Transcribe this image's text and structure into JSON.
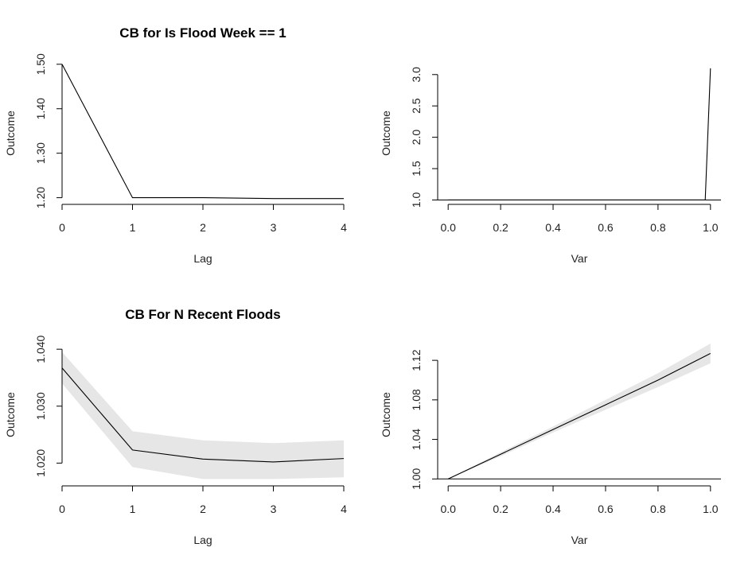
{
  "chart_data": [
    {
      "type": "line",
      "title": "CB for Is Flood Week == 1",
      "xlabel": "Lag",
      "ylabel": "Outcome",
      "xlim": [
        0,
        4
      ],
      "ylim": [
        1.185,
        1.505
      ],
      "xticks": [
        0,
        1,
        2,
        3,
        4
      ],
      "xtick_labels": [
        "0",
        "1",
        "2",
        "3",
        "4"
      ],
      "yticks": [
        1.2,
        1.3,
        1.4,
        1.5
      ],
      "ytick_labels": [
        "1.20",
        "1.30",
        "1.40",
        "1.50"
      ],
      "x": [
        0,
        1,
        2,
        3,
        4
      ],
      "series": [
        {
          "values": [
            1.5,
            1.2,
            1.2,
            1.198,
            1.198
          ]
        }
      ]
    },
    {
      "type": "line",
      "title": "",
      "xlabel": "Var",
      "ylabel": "Outcome",
      "xlim": [
        -0.04,
        1.04
      ],
      "ylim": [
        0.93,
        3.2
      ],
      "xticks": [
        0.0,
        0.2,
        0.4,
        0.6,
        0.8,
        1.0
      ],
      "xtick_labels": [
        "0.0",
        "0.2",
        "0.4",
        "0.6",
        "0.8",
        "1.0"
      ],
      "yticks": [
        1.0,
        1.5,
        2.0,
        2.5,
        3.0
      ],
      "ytick_labels": [
        "1.0",
        "1.5",
        "2.0",
        "2.5",
        "3.0"
      ],
      "reference_y": 1.0,
      "x": [
        0.0,
        0.98,
        1.0
      ],
      "series": [
        {
          "values": [
            1.0,
            1.0,
            3.1
          ]
        }
      ]
    },
    {
      "type": "area",
      "title": "CB For N Recent Floods",
      "xlabel": "Lag",
      "ylabel": "Outcome",
      "xlim": [
        0,
        4
      ],
      "ylim": [
        1.016,
        1.041
      ],
      "xticks": [
        0,
        1,
        2,
        3,
        4
      ],
      "xtick_labels": [
        "0",
        "1",
        "2",
        "3",
        "4"
      ],
      "yticks": [
        1.02,
        1.03,
        1.04
      ],
      "ytick_labels": [
        "1.020",
        "1.030",
        "1.040"
      ],
      "x": [
        0,
        1,
        2,
        3,
        4
      ],
      "series": [
        {
          "values": [
            1.0367,
            1.0223,
            1.0207,
            1.0202,
            1.0208
          ]
        }
      ],
      "band_lower": [
        1.034,
        1.0193,
        1.0172,
        1.0172,
        1.0175
      ],
      "band_upper": [
        1.0395,
        1.0256,
        1.024,
        1.0235,
        1.024
      ]
    },
    {
      "type": "area",
      "title": "",
      "xlabel": "Var",
      "ylabel": "Outcome",
      "xlim": [
        -0.04,
        1.04
      ],
      "ylim": [
        0.993,
        1.137
      ],
      "xticks": [
        0.0,
        0.2,
        0.4,
        0.6,
        0.8,
        1.0
      ],
      "xtick_labels": [
        "0.0",
        "0.2",
        "0.4",
        "0.6",
        "0.8",
        "1.0"
      ],
      "yticks": [
        1.0,
        1.04,
        1.08,
        1.12
      ],
      "ytick_labels": [
        "1.00",
        "1.04",
        "1.08",
        "1.12"
      ],
      "reference_y": 1.0,
      "x": [
        0.0,
        0.2,
        0.4,
        0.6,
        0.8,
        1.0
      ],
      "series": [
        {
          "values": [
            1.0,
            1.025,
            1.05,
            1.075,
            1.1,
            1.127
          ]
        }
      ],
      "band_lower": [
        1.0,
        1.023,
        1.047,
        1.07,
        1.093,
        1.117
      ],
      "band_upper": [
        1.0,
        1.027,
        1.053,
        1.08,
        1.107,
        1.137
      ]
    }
  ]
}
